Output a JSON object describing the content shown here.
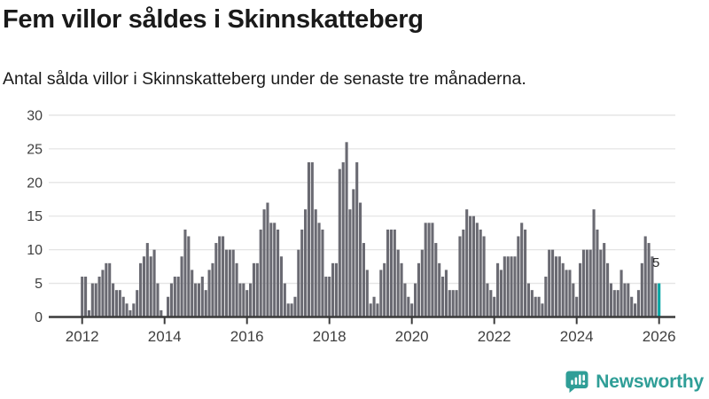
{
  "title": "Fem villor såldes i Skinnskatteberg",
  "subtitle": "Antal sålda villor i Skinnskatteberg under de senaste tre månaderna.",
  "branding": {
    "name": "Newsworthy",
    "color": "#2f9e97"
  },
  "colors": {
    "bar": "#6a6a72",
    "highlight": "#00a5a3",
    "grid": "#e4e4e4",
    "axis": "#3b3b3b",
    "tick_text": "#3f3f3f",
    "annotation": "#2b2b2b"
  },
  "chart_data": {
    "type": "bar",
    "title": "Fem villor såldes i Skinnskatteberg",
    "ylabel": "",
    "xlabel": "",
    "frequency": "monthly",
    "start": "2012-01",
    "end": "2026-01",
    "x_ticks": [
      2012,
      2014,
      2016,
      2018,
      2020,
      2022,
      2024,
      2026
    ],
    "y_ticks": [
      0,
      5,
      10,
      15,
      20,
      25,
      30
    ],
    "ylim": [
      0,
      30
    ],
    "grid": "horizontal",
    "legend": "none",
    "highlight_last": true,
    "last_label": "5",
    "values": [
      6,
      6,
      1,
      5,
      5,
      6,
      7,
      8,
      8,
      5,
      4,
      4,
      3,
      2,
      1,
      2,
      4,
      8,
      9,
      11,
      9,
      10,
      5,
      1,
      0,
      3,
      5,
      6,
      6,
      9,
      13,
      12,
      7,
      5,
      5,
      6,
      4,
      7,
      8,
      11,
      12,
      12,
      10,
      10,
      10,
      8,
      5,
      5,
      4,
      5,
      8,
      8,
      13,
      16,
      17,
      14,
      14,
      13,
      9,
      5,
      2,
      2,
      3,
      10,
      13,
      16,
      23,
      23,
      16,
      14,
      13,
      6,
      6,
      8,
      8,
      22,
      23,
      26,
      16,
      19,
      23,
      17,
      11,
      7,
      2,
      3,
      2,
      7,
      8,
      13,
      13,
      13,
      10,
      8,
      5,
      3,
      2,
      5,
      8,
      10,
      14,
      14,
      14,
      11,
      8,
      6,
      7,
      4,
      4,
      4,
      12,
      13,
      16,
      15,
      15,
      14,
      13,
      12,
      5,
      4,
      3,
      8,
      7,
      9,
      9,
      9,
      9,
      12,
      14,
      13,
      5,
      4,
      3,
      3,
      2,
      6,
      10,
      10,
      9,
      9,
      8,
      7,
      7,
      5,
      3,
      8,
      10,
      10,
      10,
      16,
      13,
      10,
      11,
      8,
      5,
      4,
      4,
      7,
      5,
      5,
      3,
      2,
      4,
      8,
      12,
      11,
      9,
      5,
      5
    ]
  }
}
